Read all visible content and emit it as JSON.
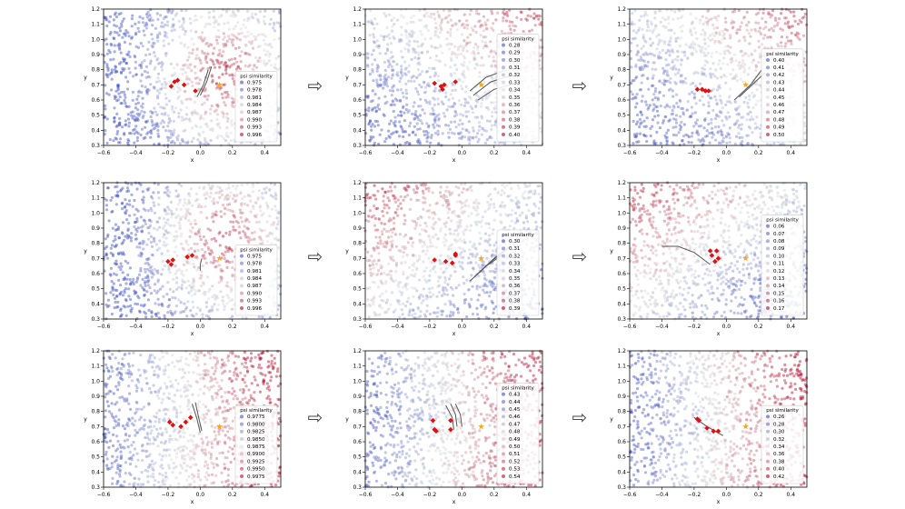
{
  "figure": {
    "arrow_glyph": "⇨",
    "x_range": [
      -0.6,
      0.5
    ],
    "y_range": [
      0.3,
      1.2
    ],
    "x_ticks": [
      "-0.6",
      "-0.4",
      "-0.2",
      "0.0",
      "0.2",
      "0.4"
    ],
    "y_ticks": [
      "0.3",
      "0.4",
      "0.5",
      "0.6",
      "0.7",
      "0.8",
      "0.9",
      "1.0",
      "1.1",
      "1.2"
    ],
    "colors": {
      "low": "#3b4cc0",
      "mid": "#dddddd",
      "high": "#b40426",
      "diamond": "#e01010",
      "star": "#f5a623",
      "traj": "#555555"
    }
  },
  "chart_data": [
    {
      "type": "scatter",
      "id": "r1c1",
      "xlabel": "x",
      "ylabel": "y",
      "legend_title": "psi similarity",
      "legend_values": [
        "0.975",
        "0.978",
        "0.981",
        "0.984",
        "0.987",
        "0.990",
        "0.993",
        "0.996"
      ],
      "field": {
        "pattern": "center",
        "cx": 0.15,
        "cy": 0.78
      },
      "diamonds": [
        [
          -0.18,
          0.69
        ],
        [
          -0.16,
          0.72
        ],
        [
          -0.14,
          0.73
        ],
        [
          -0.1,
          0.7
        ],
        [
          -0.03,
          0.66
        ]
      ],
      "star": [
        0.12,
        0.7
      ],
      "trajectories": [
        [
          [
            -0.02,
            0.62
          ],
          [
            0.02,
            0.7
          ],
          [
            0.05,
            0.8
          ]
        ],
        [
          [
            0.0,
            0.63
          ],
          [
            0.04,
            0.72
          ],
          [
            0.07,
            0.82
          ]
        ]
      ]
    },
    {
      "type": "scatter",
      "id": "r1c2",
      "xlabel": "x",
      "ylabel": "y",
      "legend_title": "psi similarity",
      "legend_values": [
        "0.28",
        "0.29",
        "0.30",
        "0.31",
        "0.32",
        "0.33",
        "0.34",
        "0.35",
        "0.36",
        "0.37",
        "0.38",
        "0.39",
        "0.40"
      ],
      "field": {
        "pattern": "top-right"
      },
      "diamonds": [
        [
          -0.17,
          0.71
        ],
        [
          -0.13,
          0.69
        ],
        [
          -0.12,
          0.67
        ],
        [
          -0.11,
          0.7
        ],
        [
          -0.04,
          0.72
        ]
      ],
      "star": [
        0.12,
        0.7
      ],
      "trajectories": [
        [
          [
            0.05,
            0.66
          ],
          [
            0.15,
            0.75
          ],
          [
            0.28,
            0.8
          ]
        ],
        [
          [
            0.07,
            0.63
          ],
          [
            0.18,
            0.72
          ],
          [
            0.3,
            0.76
          ]
        ],
        [
          [
            0.1,
            0.6
          ],
          [
            0.2,
            0.67
          ],
          [
            0.3,
            0.7
          ]
        ]
      ]
    },
    {
      "type": "scatter",
      "id": "r1c3",
      "xlabel": "x",
      "ylabel": "y",
      "legend_title": "psi similarity",
      "legend_values": [
        "0.40",
        "0.41",
        "0.42",
        "0.43",
        "0.44",
        "0.45",
        "0.46",
        "0.47",
        "0.48",
        "0.49",
        "0.50"
      ],
      "field": {
        "pattern": "top-right"
      },
      "diamonds": [
        [
          -0.18,
          0.67
        ],
        [
          -0.15,
          0.67
        ],
        [
          -0.13,
          0.66
        ],
        [
          -0.11,
          0.66
        ]
      ],
      "star": [
        0.12,
        0.7
      ],
      "trajectories": [
        [
          [
            0.05,
            0.6
          ],
          [
            0.15,
            0.7
          ],
          [
            0.22,
            0.8
          ]
        ],
        [
          [
            0.08,
            0.62
          ],
          [
            0.18,
            0.72
          ],
          [
            0.24,
            0.78
          ]
        ]
      ]
    },
    {
      "type": "scatter",
      "id": "r2c1",
      "xlabel": "x",
      "ylabel": "y",
      "legend_title": "psi similarity",
      "legend_values": [
        "0.975",
        "0.978",
        "0.981",
        "0.984",
        "0.987",
        "0.990",
        "0.993",
        "0.996"
      ],
      "field": {
        "pattern": "center",
        "cx": 0.15,
        "cy": 0.82
      },
      "diamonds": [
        [
          -0.2,
          0.68
        ],
        [
          -0.18,
          0.66
        ],
        [
          -0.17,
          0.69
        ],
        [
          -0.08,
          0.71
        ],
        [
          -0.05,
          0.72
        ]
      ],
      "star": [
        0.12,
        0.7
      ],
      "trajectories": [
        [
          [
            0.0,
            0.62
          ],
          [
            0.0,
            0.66
          ],
          [
            0.01,
            0.7
          ]
        ]
      ]
    },
    {
      "type": "scatter",
      "id": "r2c2",
      "xlabel": "x",
      "ylabel": "y",
      "legend_title": "psi similarity",
      "legend_values": [
        "0.30",
        "0.31",
        "0.32",
        "0.33",
        "0.34",
        "0.35",
        "0.36",
        "0.37",
        "0.38",
        "0.39"
      ],
      "field": {
        "pattern": "top-left"
      },
      "diamonds": [
        [
          -0.17,
          0.69
        ],
        [
          -0.1,
          0.68
        ],
        [
          -0.06,
          0.67
        ],
        [
          -0.04,
          0.72
        ],
        [
          -0.04,
          0.73
        ]
      ],
      "star": [
        0.12,
        0.7
      ],
      "trajectories": [
        [
          [
            0.05,
            0.55
          ],
          [
            0.15,
            0.65
          ],
          [
            0.26,
            0.73
          ]
        ],
        [
          [
            0.08,
            0.58
          ],
          [
            0.18,
            0.68
          ],
          [
            0.28,
            0.76
          ]
        ],
        [
          [
            0.1,
            0.6
          ],
          [
            0.2,
            0.7
          ],
          [
            0.3,
            0.78
          ]
        ]
      ]
    },
    {
      "type": "scatter",
      "id": "r2c3",
      "xlabel": "x",
      "ylabel": "y",
      "legend_title": "psi similarity",
      "legend_values": [
        "0.06",
        "0.07",
        "0.08",
        "0.09",
        "0.10",
        "0.11",
        "0.12",
        "0.13",
        "0.14",
        "0.15",
        "0.16",
        "0.17"
      ],
      "field": {
        "pattern": "top-left"
      },
      "diamonds": [
        [
          -0.1,
          0.75
        ],
        [
          -0.06,
          0.75
        ],
        [
          -0.09,
          0.72
        ],
        [
          -0.05,
          0.7
        ],
        [
          -0.07,
          0.68
        ]
      ],
      "star": [
        0.12,
        0.7
      ],
      "trajectories": [
        [
          [
            -0.4,
            0.78
          ],
          [
            -0.3,
            0.78
          ],
          [
            -0.2,
            0.74
          ],
          [
            -0.1,
            0.66
          ]
        ]
      ]
    },
    {
      "type": "scatter",
      "id": "r3c1",
      "xlabel": "x",
      "ylabel": "y",
      "legend_title": "psi similarity",
      "legend_values": [
        "0.9775",
        "0.9800",
        "0.9825",
        "0.9850",
        "0.9875",
        "0.9900",
        "0.9925",
        "0.9950",
        "0.9975"
      ],
      "field": {
        "pattern": "right",
        "cx": 0.3,
        "cy": 0.75
      },
      "diamonds": [
        [
          -0.19,
          0.73
        ],
        [
          -0.17,
          0.71
        ],
        [
          -0.12,
          0.7
        ],
        [
          -0.09,
          0.73
        ],
        [
          -0.06,
          0.76
        ]
      ],
      "star": [
        0.12,
        0.7
      ],
      "trajectories": [
        [
          [
            -0.05,
            0.85
          ],
          [
            -0.02,
            0.75
          ],
          [
            0.0,
            0.66
          ]
        ],
        [
          [
            -0.03,
            0.86
          ],
          [
            -0.01,
            0.76
          ],
          [
            0.01,
            0.67
          ]
        ]
      ]
    },
    {
      "type": "scatter",
      "id": "r3c2",
      "xlabel": "x",
      "ylabel": "y",
      "legend_title": "psi similarity",
      "legend_values": [
        "0.43",
        "0.44",
        "0.45",
        "0.46",
        "0.47",
        "0.48",
        "0.49",
        "0.50",
        "0.51",
        "0.52",
        "0.53",
        "0.54"
      ],
      "field": {
        "pattern": "right"
      },
      "diamonds": [
        [
          -0.18,
          0.74
        ],
        [
          -0.17,
          0.68
        ],
        [
          -0.16,
          0.67
        ],
        [
          -0.07,
          0.74
        ],
        [
          -0.07,
          0.68
        ]
      ],
      "star": [
        0.12,
        0.7
      ],
      "trajectories": [
        [
          [
            -0.1,
            0.84
          ],
          [
            -0.06,
            0.76
          ],
          [
            -0.05,
            0.68
          ]
        ],
        [
          [
            -0.07,
            0.85
          ],
          [
            -0.04,
            0.78
          ],
          [
            -0.03,
            0.7
          ]
        ],
        [
          [
            -0.04,
            0.85
          ],
          [
            -0.01,
            0.78
          ],
          [
            0.0,
            0.7
          ]
        ]
      ]
    },
    {
      "type": "scatter",
      "id": "r3c3",
      "xlabel": "x",
      "ylabel": "y",
      "legend_title": "psi similarity",
      "legend_values": [
        "0.26",
        "0.28",
        "0.30",
        "0.32",
        "0.34",
        "0.36",
        "0.38",
        "0.40",
        "0.42"
      ],
      "field": {
        "pattern": "right"
      },
      "diamonds": [
        [
          -0.18,
          0.75
        ],
        [
          -0.17,
          0.74
        ],
        [
          -0.12,
          0.69
        ],
        [
          -0.08,
          0.67
        ],
        [
          -0.05,
          0.67
        ]
      ],
      "star": [
        0.12,
        0.7
      ],
      "trajectories": [
        [
          [
            -0.2,
            0.76
          ],
          [
            -0.12,
            0.7
          ],
          [
            -0.02,
            0.64
          ]
        ]
      ]
    }
  ]
}
